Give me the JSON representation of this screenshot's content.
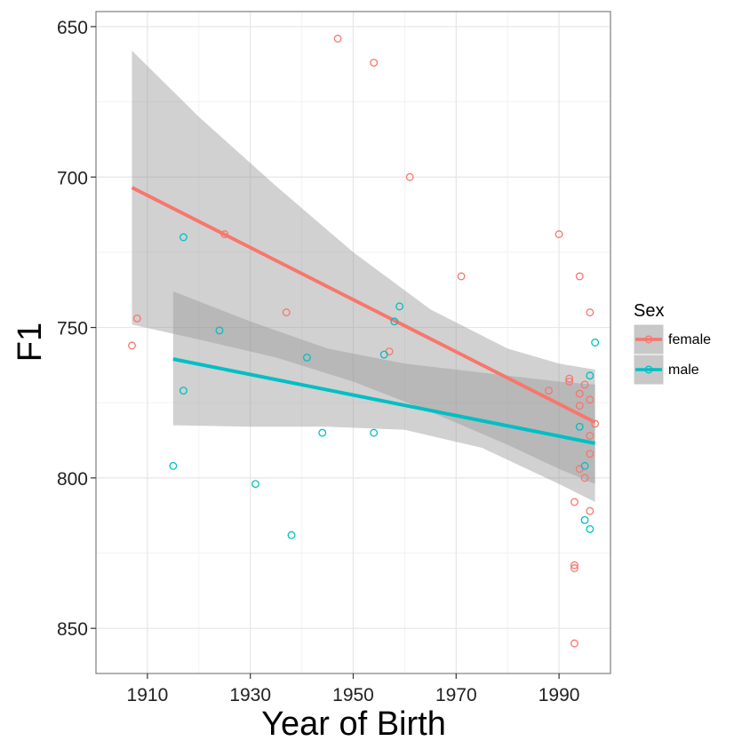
{
  "chart_data": {
    "type": "scatter",
    "title": "",
    "xlabel": "Year of Birth",
    "ylabel": "F1",
    "xlim": [
      1900,
      2000
    ],
    "ylim": [
      645,
      865
    ],
    "y_reversed": true,
    "x_ticks": [
      "1910",
      "1930",
      "1950",
      "1970",
      "1990"
    ],
    "x_tick_values": [
      1910,
      1930,
      1950,
      1970,
      1990
    ],
    "y_ticks": [
      "650",
      "700",
      "750",
      "800",
      "850"
    ],
    "y_tick_values": [
      650,
      700,
      750,
      800,
      850
    ],
    "grid": true,
    "legend": {
      "title": "Sex",
      "position": "right"
    },
    "series": [
      {
        "name": "female",
        "color": "#F8766D",
        "points": [
          [
            1907,
            756
          ],
          [
            1908,
            747
          ],
          [
            1925,
            719
          ],
          [
            1937,
            745
          ],
          [
            1947,
            654
          ],
          [
            1954,
            662
          ],
          [
            1957,
            758
          ],
          [
            1961,
            700
          ],
          [
            1971,
            733
          ],
          [
            1988,
            771
          ],
          [
            1990,
            719
          ],
          [
            1992,
            767
          ],
          [
            1992,
            768
          ],
          [
            1993,
            808
          ],
          [
            1993,
            829
          ],
          [
            1993,
            830
          ],
          [
            1993,
            855
          ],
          [
            1994,
            733
          ],
          [
            1994,
            772
          ],
          [
            1994,
            776
          ],
          [
            1994,
            797
          ],
          [
            1995,
            769
          ],
          [
            1995,
            800
          ],
          [
            1996,
            745
          ],
          [
            1996,
            774
          ],
          [
            1996,
            786
          ],
          [
            1996,
            792
          ],
          [
            1996,
            811
          ],
          [
            1997,
            782
          ]
        ],
        "fit": {
          "x": [
            1907,
            1997
          ],
          "y": [
            703.5,
            781.5
          ],
          "ci": {
            "x": [
              1907,
              1920,
              1935,
              1950,
              1965,
              1980,
              1990,
              1997
            ],
            "lower": [
              658,
              680,
              703,
              725,
              744,
              757,
              762,
              764
            ],
            "upper": [
              749,
              754,
              760,
              768,
              778,
              789,
              797,
              802
            ]
          }
        }
      },
      {
        "name": "male",
        "color": "#00BFC4",
        "points": [
          [
            1915,
            796
          ],
          [
            1917,
            720
          ],
          [
            1917,
            771
          ],
          [
            1924,
            751
          ],
          [
            1931,
            802
          ],
          [
            1938,
            819
          ],
          [
            1941,
            760
          ],
          [
            1944,
            785
          ],
          [
            1954,
            785
          ],
          [
            1956,
            759
          ],
          [
            1958,
            748
          ],
          [
            1959,
            743
          ],
          [
            1994,
            783
          ],
          [
            1995,
            796
          ],
          [
            1995,
            814
          ],
          [
            1996,
            766
          ],
          [
            1996,
            817
          ],
          [
            1997,
            755
          ]
        ],
        "fit": {
          "x": [
            1915,
            1997
          ],
          "y": [
            760.5,
            788.5
          ],
          "ci": {
            "x": [
              1915,
              1930,
              1945,
              1960,
              1975,
              1990,
              1997
            ],
            "lower": [
              738,
              748,
              757,
              762,
              765,
              768,
              769
            ],
            "upper": [
              782.5,
              783,
              783,
              784,
              790,
              802,
              808
            ]
          }
        }
      }
    ]
  }
}
